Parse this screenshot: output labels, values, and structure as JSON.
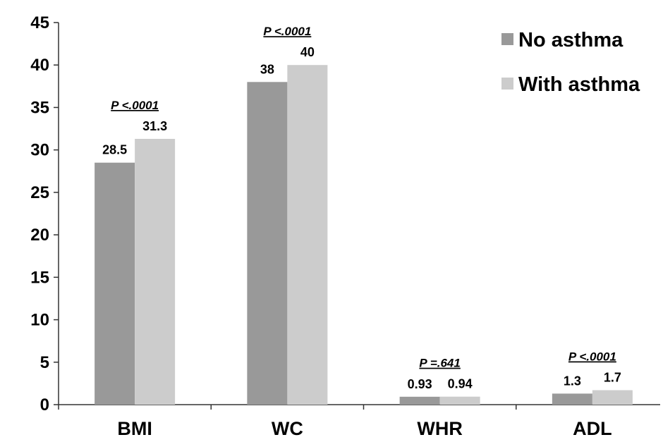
{
  "chart_data": {
    "type": "bar",
    "categories": [
      "BMI",
      "WC",
      "WHR",
      "ADL"
    ],
    "series": [
      {
        "name": "No asthma",
        "values": [
          28.5,
          38,
          0.93,
          1.3
        ],
        "labels": [
          "28.5",
          "38",
          "0.93",
          "1.3"
        ],
        "color": "#999999"
      },
      {
        "name": "With asthma",
        "values": [
          31.3,
          40,
          0.94,
          1.7
        ],
        "labels": [
          "31.3",
          "40",
          "0.94",
          "1.7"
        ],
        "color": "#cccccc"
      }
    ],
    "annotations": [
      "P <.0001",
      "P <.0001",
      "P =.641",
      "P <.0001"
    ],
    "yticks": [
      "0",
      "5",
      "10",
      "15",
      "20",
      "25",
      "30",
      "35",
      "40",
      "45"
    ],
    "ylim": [
      0,
      45
    ],
    "grid": false,
    "legend": "top-right",
    "title": "",
    "xlabel": "",
    "ylabel": ""
  }
}
